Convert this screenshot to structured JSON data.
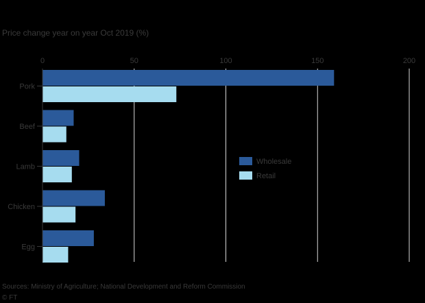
{
  "chart_data": {
    "type": "bar",
    "orientation": "horizontal",
    "title": "Price change year on year Oct 2019 (%)",
    "categories": [
      "Pork",
      "Beef",
      "Lamb",
      "Chicken",
      "Egg"
    ],
    "series": [
      {
        "name": "Wholesale",
        "color": "#2b5a9a",
        "values": [
          159,
          17,
          20,
          34,
          28
        ]
      },
      {
        "name": "Retail",
        "color": "#a6dcef",
        "values": [
          73,
          13,
          16,
          18,
          14
        ]
      }
    ],
    "xlim": [
      0,
      200
    ],
    "xticks": [
      0,
      50,
      100,
      150,
      200
    ],
    "grid": true,
    "legend_position": "right-middle",
    "source": "Sources: Ministry of Agriculture; National Development and Reform Commission",
    "credit": "© FT"
  }
}
